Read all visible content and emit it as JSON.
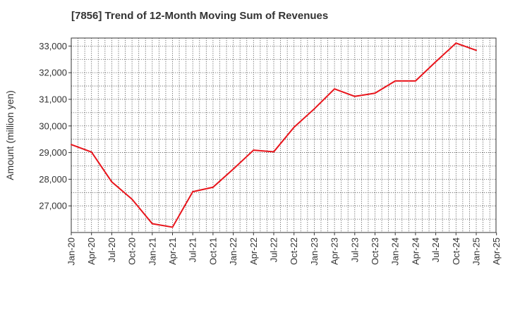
{
  "chart_data": {
    "type": "line",
    "title": "[7856]  Trend of 12-Month Moving Sum of Revenues",
    "xlabel": "",
    "ylabel": "Amount (million yen)",
    "x_ticks": [
      "Jan-20",
      "Apr-20",
      "Jul-20",
      "Oct-20",
      "Jan-21",
      "Apr-21",
      "Jul-21",
      "Oct-21",
      "Jan-22",
      "Apr-22",
      "Jul-22",
      "Oct-22",
      "Jan-23",
      "Apr-23",
      "Jul-23",
      "Oct-23",
      "Jan-24",
      "Apr-24",
      "Jul-24",
      "Oct-24",
      "Jan-25",
      "Apr-25"
    ],
    "y_ticks": [
      27000,
      28000,
      29000,
      30000,
      31000,
      32000,
      33000
    ],
    "ylim": [
      26000,
      33300
    ],
    "grid": true,
    "series": [
      {
        "color": "#e8141b",
        "x": [
          "Jan-20",
          "Apr-20",
          "Jul-20",
          "Oct-20",
          "Jan-21",
          "Apr-21",
          "Jul-21",
          "Oct-21",
          "Jan-22",
          "Apr-22",
          "Jul-22",
          "Oct-22",
          "Jan-23",
          "Apr-23",
          "Jul-23",
          "Oct-23",
          "Jan-24",
          "Apr-24",
          "Jul-24",
          "Oct-24",
          "Jan-25"
        ],
        "values": [
          29300,
          29020,
          27900,
          27250,
          26330,
          26200,
          27530,
          27700,
          28380,
          29090,
          29030,
          29950,
          30640,
          31390,
          31110,
          31230,
          31690,
          31690,
          32410,
          33110,
          32840
        ]
      }
    ]
  }
}
